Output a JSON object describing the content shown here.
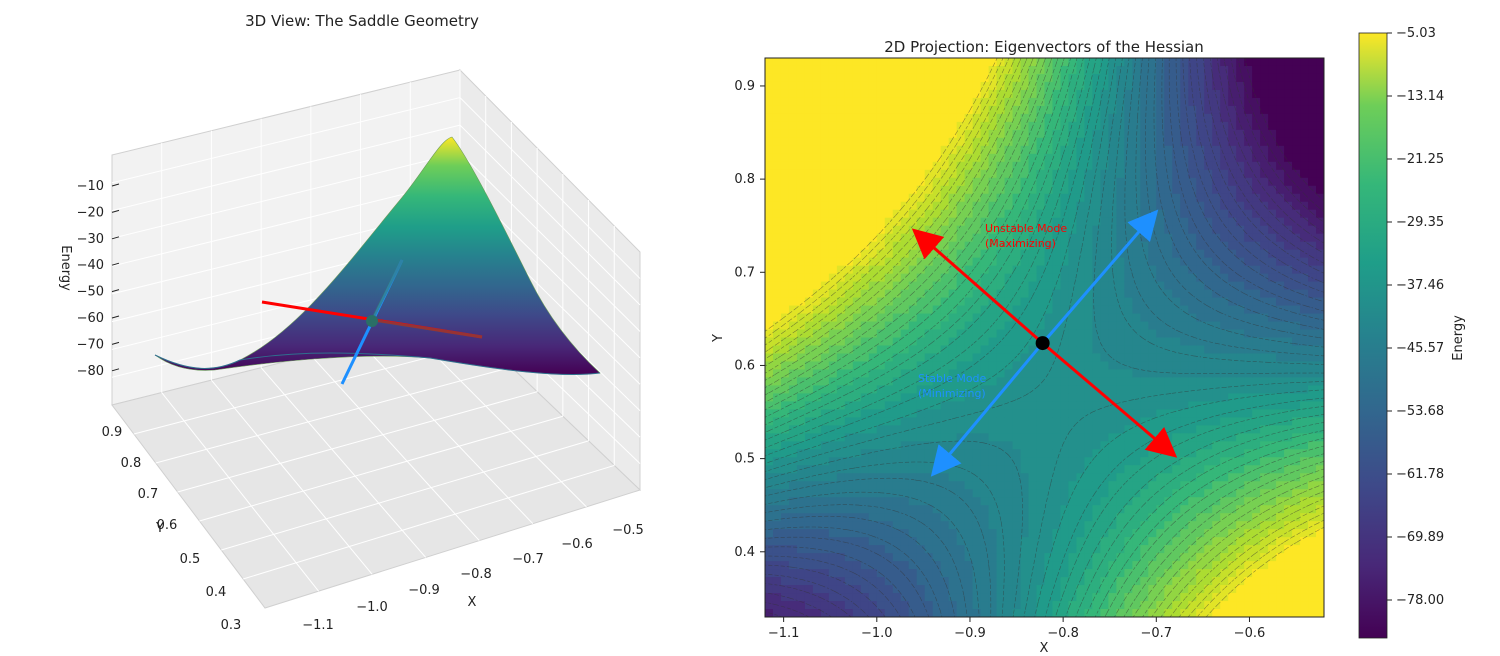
{
  "chart_data": [
    {
      "type": "surface3d",
      "title": "3D View: The Saddle Geometry",
      "xlabel": "X",
      "ylabel": "Y",
      "zlabel": "Energy",
      "x_ticks": [
        "−1.1",
        "−1.0",
        "−0.9",
        "−0.8",
        "−0.7",
        "−0.6",
        "−0.5"
      ],
      "y_ticks": [
        "0.3",
        "0.4",
        "0.5",
        "0.6",
        "0.7",
        "0.8",
        "0.9"
      ],
      "z_ticks": [
        "−10",
        "−20",
        "−30",
        "−40",
        "−50",
        "−60",
        "−70",
        "−80"
      ],
      "xlim": [
        -1.12,
        -0.52
      ],
      "ylim": [
        0.33,
        0.92
      ],
      "zlim": [
        -85,
        -5
      ],
      "saddle_point": {
        "x": -0.822,
        "y": 0.624,
        "z": -61
      },
      "eigenvectors": [
        {
          "mode": "unstable",
          "color": "#ff0000"
        },
        {
          "mode": "stable",
          "color": "#1e90ff"
        }
      ],
      "colormap": "viridis",
      "grid": true
    },
    {
      "type": "contour",
      "title": "2D Projection: Eigenvectors of the Hessian",
      "xlabel": "X",
      "ylabel": "Y",
      "x_ticks": [
        "−1.1",
        "−1.0",
        "−0.9",
        "−0.8",
        "−0.7",
        "−0.6"
      ],
      "y_ticks": [
        "0.4",
        "0.5",
        "0.6",
        "0.7",
        "0.8",
        "0.9"
      ],
      "xlim": [
        -1.12,
        -0.52
      ],
      "ylim": [
        0.33,
        0.93
      ],
      "saddle_point": {
        "x": -0.822,
        "y": 0.624
      },
      "arrows": [
        {
          "name": "Unstable Mode",
          "sublabel": "(Maximizing)",
          "color": "#ff0000",
          "from": [
            -0.822,
            0.624
          ],
          "to_a": [
            -0.96,
            0.745
          ],
          "to_b": [
            -0.68,
            0.503
          ]
        },
        {
          "name": "Stable Mode",
          "sublabel": "(Minimizing)",
          "color": "#1e90ff",
          "from": [
            -0.822,
            0.624
          ],
          "to_a": [
            -0.7,
            0.765
          ],
          "to_b": [
            -0.94,
            0.483
          ]
        }
      ],
      "colorbar": {
        "label": "Energy",
        "ticks": [
          "−5.03",
          "−13.14",
          "−21.25",
          "−29.35",
          "−37.46",
          "−45.57",
          "−53.68",
          "−61.78",
          "−69.89",
          "−78.00"
        ],
        "range": [
          -83,
          -5.03
        ]
      },
      "colormap": "viridis"
    }
  ]
}
